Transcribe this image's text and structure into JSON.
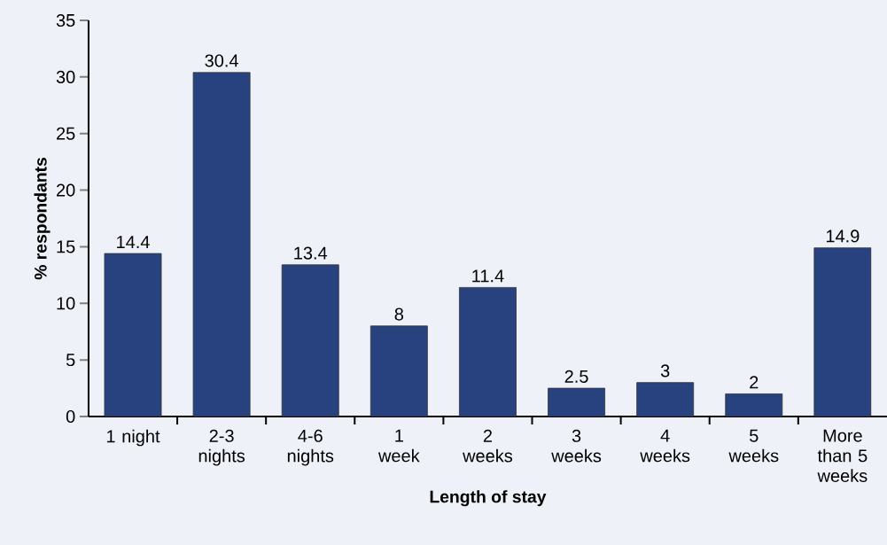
{
  "chart_data": {
    "type": "bar",
    "xlabel": "Length of stay",
    "ylabel": "% respondants",
    "categories": [
      "1 night",
      "2-3 nights",
      "4-6 nights",
      "1 week",
      "2 weeks",
      "3 weeks",
      "4 weeks",
      "5 weeks",
      "More than 5 weeks"
    ],
    "values": [
      14.4,
      30.4,
      13.4,
      8,
      11.4,
      2.5,
      3,
      2,
      14.9
    ],
    "color": "#27427f",
    "ylim": [
      0,
      35
    ],
    "yticks": [
      0,
      5,
      10,
      15,
      20,
      25,
      30,
      35
    ],
    "data_labels": true
  }
}
